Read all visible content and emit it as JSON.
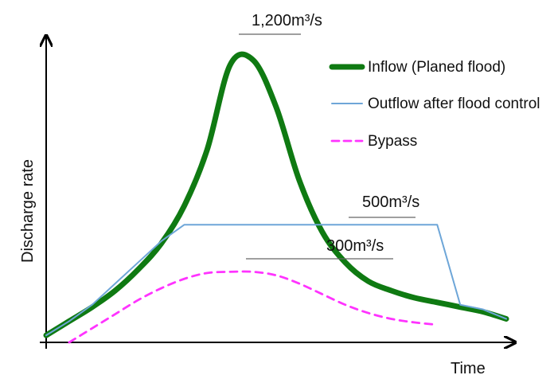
{
  "chart_data": {
    "type": "line",
    "title": "",
    "xlabel": "Time",
    "ylabel": "Discharge rate",
    "grid": false,
    "legend_position": "top-right",
    "x": [
      0,
      5,
      10,
      15,
      20,
      25,
      30,
      35,
      40,
      45,
      50,
      55,
      60,
      65,
      70,
      75,
      80,
      85,
      90,
      95,
      100
    ],
    "xlim": [
      0,
      100
    ],
    "ylim": [
      0,
      1300
    ],
    "series": [
      {
        "name": "Inflow (Planed flood)",
        "color": "#0f7a12",
        "line_style": "solid",
        "line_width": "thick",
        "values": [
          30,
          90,
          150,
          220,
          310,
          420,
          580,
          820,
          1180,
          1200,
          1000,
          690,
          470,
          340,
          260,
          220,
          190,
          170,
          150,
          130,
          100
        ]
      },
      {
        "name": "Outflow after flood control",
        "color": "#6ea6d8",
        "line_style": "solid",
        "line_width": "thin",
        "values": [
          30,
          90,
          160,
          250,
          340,
          430,
          500,
          500,
          500,
          500,
          500,
          500,
          500,
          500,
          500,
          500,
          500,
          500,
          160,
          140,
          100
        ]
      },
      {
        "name": "Bypass",
        "color": "#ff33ff",
        "line_style": "dashed",
        "line_width": "thin",
        "values": [
          null,
          0,
          60,
          120,
          180,
          230,
          270,
          295,
          300,
          300,
          285,
          250,
          205,
          160,
          125,
          100,
          85,
          75,
          null,
          null,
          null
        ]
      }
    ],
    "annotations": [
      {
        "text": "1,200m³/s",
        "target_series": "Inflow (Planed flood)",
        "x": 45,
        "y": 1200
      },
      {
        "text": "500m³/s",
        "target_series": "Outflow after flood control",
        "x": 85,
        "y": 500
      },
      {
        "text": "300m³/s",
        "target_series": "Bypass",
        "x": 55,
        "y": 300
      }
    ]
  }
}
